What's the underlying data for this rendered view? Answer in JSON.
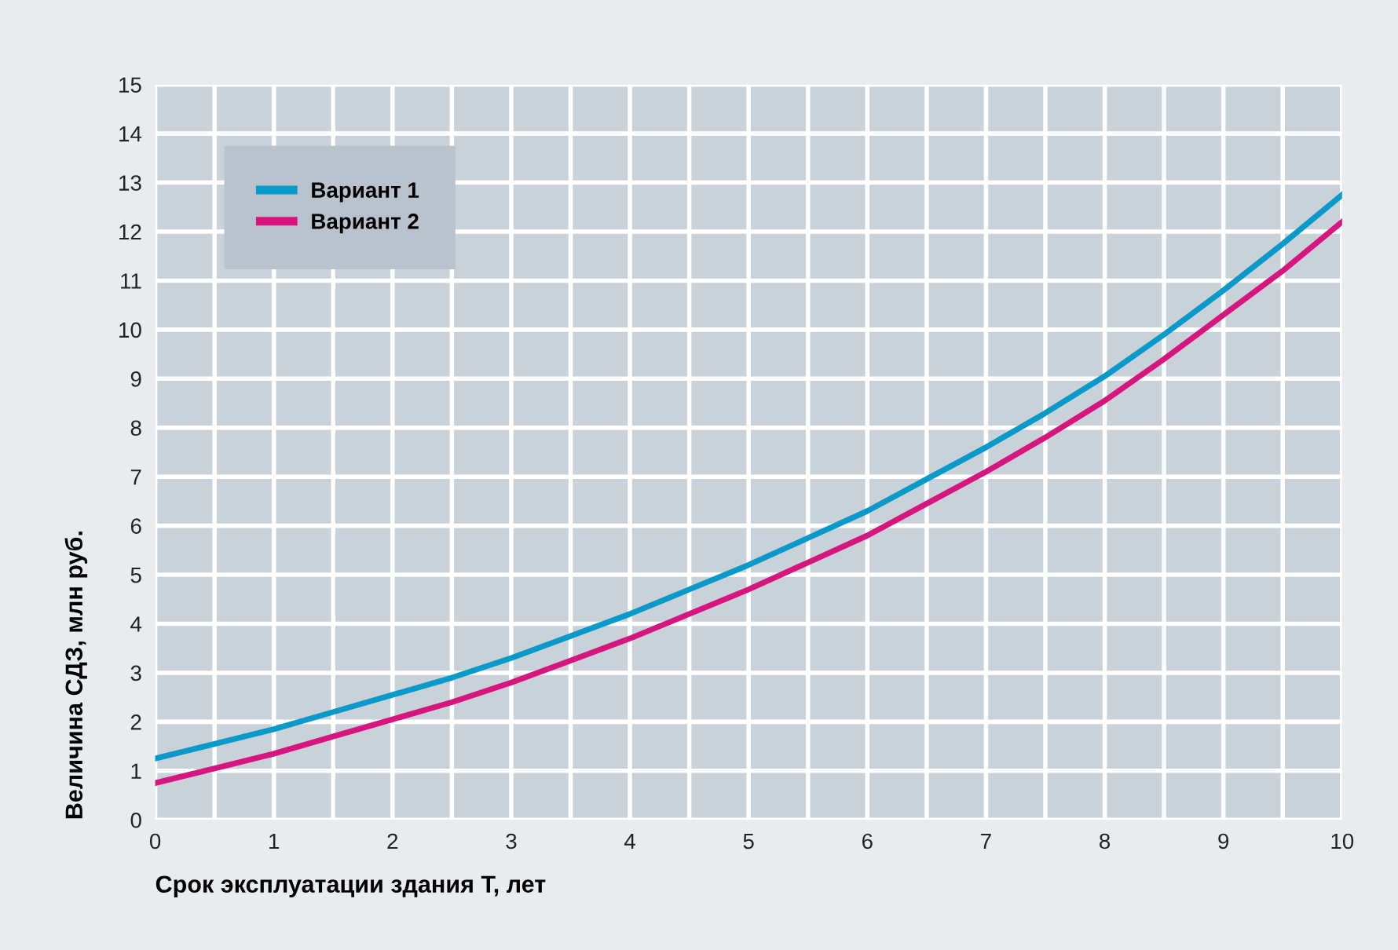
{
  "chart_data": {
    "type": "line",
    "xlabel": "Срок эксплуатации здания T, лет",
    "ylabel": "Величина СДЗ, млн руб.",
    "x": [
      0,
      0.5,
      1,
      1.5,
      2,
      2.5,
      3,
      3.5,
      4,
      4.5,
      5,
      5.5,
      6,
      6.5,
      7,
      7.5,
      8,
      8.5,
      9,
      9.5,
      10
    ],
    "series": [
      {
        "name": "Вариант 1",
        "color": "#0a9ac9",
        "values": [
          1.25,
          1.55,
          1.85,
          2.2,
          2.55,
          2.9,
          3.3,
          3.75,
          4.2,
          4.7,
          5.2,
          5.75,
          6.3,
          6.95,
          7.6,
          8.3,
          9.05,
          9.9,
          10.8,
          11.75,
          12.75
        ]
      },
      {
        "name": "Вариант 2",
        "color": "#d6157e",
        "values": [
          0.75,
          1.05,
          1.35,
          1.7,
          2.05,
          2.4,
          2.8,
          3.25,
          3.7,
          4.2,
          4.7,
          5.25,
          5.8,
          6.45,
          7.1,
          7.8,
          8.55,
          9.4,
          10.3,
          11.2,
          12.2
        ]
      }
    ],
    "xlim": [
      0,
      10
    ],
    "ylim": [
      0,
      15
    ],
    "xticks": [
      0,
      {
        "value": 0.5,
        "label": null
      },
      1,
      {
        "value": 1.5,
        "label": null
      },
      2,
      {
        "value": 2.5,
        "label": null
      },
      3,
      {
        "value": 3.5,
        "label": null
      },
      4,
      {
        "value": 4.5,
        "label": null
      },
      5,
      {
        "value": 5.5,
        "label": null
      },
      6,
      {
        "value": 6.5,
        "label": null
      },
      7,
      {
        "value": 7.5,
        "label": null
      },
      8,
      {
        "value": 8.5,
        "label": null
      },
      9,
      {
        "value": 9.5,
        "label": null
      },
      10
    ],
    "yticks": [
      0,
      1,
      2,
      3,
      4,
      5,
      6,
      7,
      8,
      9,
      10,
      11,
      12,
      13,
      14,
      15
    ],
    "grid": true,
    "legend": "top left",
    "marker": "none",
    "line_style": "solid"
  }
}
